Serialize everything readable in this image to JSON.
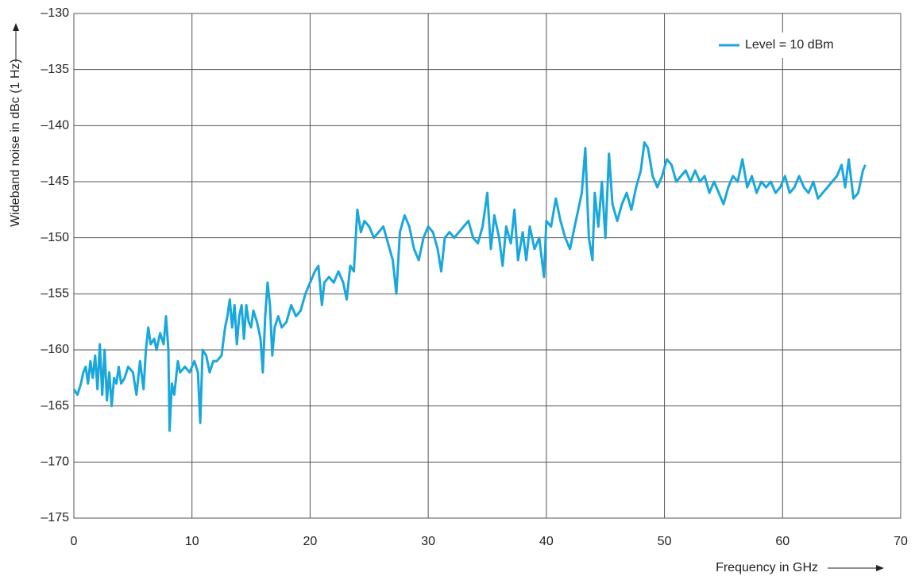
{
  "chart_data": {
    "type": "line",
    "ylabel": "Wideband noise in dBc (1 Hz)",
    "xlabel": "Frequency in GHz",
    "xlim": [
      0,
      70
    ],
    "xticks": [
      0,
      10,
      20,
      30,
      40,
      50,
      60,
      70
    ],
    "ylim": [
      -175,
      -130
    ],
    "yticks": [
      {
        "value": -175,
        "label": "–175"
      },
      {
        "value": -170,
        "label": "–170"
      },
      {
        "value": -165,
        "label": "–165"
      },
      {
        "value": -160,
        "label": "–160"
      },
      {
        "value": -155,
        "label": "–155"
      },
      {
        "value": -150,
        "label": "–150"
      },
      {
        "value": -145,
        "label": "–145"
      },
      {
        "value": -140,
        "label": "–140"
      },
      {
        "value": -135,
        "label": "–135"
      },
      {
        "value": -130,
        "label": "–130"
      }
    ],
    "grid": true,
    "legend": "upper right",
    "series": [
      {
        "name": "Level = 10 dBm",
        "color": "#1aa7dc",
        "x": [
          0,
          0.3,
          0.6,
          0.8,
          1,
          1.2,
          1.4,
          1.6,
          1.8,
          2,
          2.2,
          2.4,
          2.6,
          2.8,
          3,
          3.2,
          3.4,
          3.6,
          3.8,
          4,
          4.3,
          4.6,
          5,
          5.3,
          5.6,
          5.9,
          6.1,
          6.3,
          6.5,
          6.8,
          7,
          7.3,
          7.6,
          7.8,
          8,
          8.1,
          8.3,
          8.5,
          8.8,
          9,
          9.4,
          9.8,
          10.2,
          10.5,
          10.7,
          10.9,
          11.2,
          11.5,
          11.8,
          12.1,
          12.5,
          12.8,
          13,
          13.2,
          13.4,
          13.6,
          13.8,
          14,
          14.2,
          14.4,
          14.6,
          14.8,
          15,
          15.2,
          15.5,
          15.8,
          16,
          16.2,
          16.4,
          16.6,
          16.8,
          17,
          17.3,
          17.6,
          18,
          18.4,
          18.8,
          19.2,
          19.6,
          20,
          20.4,
          20.7,
          21,
          21.2,
          21.6,
          22,
          22.4,
          22.8,
          23.1,
          23.4,
          23.7,
          24,
          24.3,
          24.6,
          25,
          25.4,
          25.8,
          26.2,
          26.6,
          27,
          27.3,
          27.6,
          28,
          28.4,
          28.8,
          29.2,
          29.6,
          30,
          30.4,
          30.8,
          31.1,
          31.4,
          31.8,
          32.2,
          32.6,
          33,
          33.4,
          33.8,
          34.2,
          34.6,
          35,
          35.3,
          35.6,
          36,
          36.3,
          36.6,
          37,
          37.3,
          37.6,
          38,
          38.3,
          38.6,
          39,
          39.4,
          39.8,
          40,
          40.4,
          40.8,
          41.2,
          41.6,
          42,
          42.4,
          42.8,
          43,
          43.3,
          43.6,
          43.9,
          44.1,
          44.4,
          44.7,
          45,
          45.3,
          45.6,
          46,
          46.4,
          46.8,
          47.2,
          47.6,
          48,
          48.3,
          48.6,
          49,
          49.4,
          49.8,
          50.2,
          50.6,
          51,
          51.4,
          51.8,
          52.2,
          52.6,
          53,
          53.4,
          53.8,
          54.2,
          54.6,
          55,
          55.4,
          55.8,
          56.2,
          56.6,
          57,
          57.4,
          57.8,
          58.2,
          58.6,
          59,
          59.4,
          59.8,
          60.2,
          60.6,
          61,
          61.4,
          61.8,
          62.2,
          62.6,
          63,
          63.4,
          63.8,
          64.2,
          64.6,
          65,
          65.3,
          65.6,
          66,
          66.4,
          66.8,
          67
        ],
        "values": [
          -163.5,
          -164,
          -163,
          -162,
          -161.5,
          -163,
          -161,
          -162.5,
          -160.5,
          -163.5,
          -159.5,
          -164,
          -160,
          -164.5,
          -162,
          -165,
          -162.5,
          -163,
          -161.5,
          -163,
          -162.5,
          -161.5,
          -162,
          -164,
          -161,
          -163.5,
          -160,
          -158,
          -159.5,
          -159,
          -160,
          -158.5,
          -159.5,
          -157,
          -160,
          -167.2,
          -163,
          -164,
          -161,
          -162,
          -161.5,
          -162,
          -161,
          -162,
          -166.5,
          -160,
          -160.5,
          -162,
          -161,
          -161,
          -160.5,
          -158,
          -157,
          -155.5,
          -158,
          -156,
          -159.5,
          -157,
          -156,
          -159,
          -156,
          -157.5,
          -158,
          -156.5,
          -157.5,
          -159,
          -162,
          -157,
          -154,
          -156,
          -160.5,
          -158,
          -157,
          -158,
          -157.5,
          -156,
          -157,
          -156.5,
          -155,
          -154,
          -153,
          -152.5,
          -156,
          -154,
          -153.5,
          -154,
          -153,
          -154,
          -155.5,
          -152.5,
          -153,
          -147.5,
          -149.5,
          -148.5,
          -149,
          -150,
          -149.5,
          -149,
          -150.5,
          -152,
          -155,
          -149.5,
          -148,
          -149,
          -151,
          -152,
          -150,
          -149,
          -149.5,
          -151,
          -153,
          -150,
          -149.5,
          -150,
          -149.5,
          -149,
          -148.5,
          -150,
          -150.5,
          -149,
          -146,
          -151,
          -148,
          -150,
          -152.5,
          -149,
          -150.5,
          -147.5,
          -152,
          -149.5,
          -152,
          -149,
          -151,
          -150,
          -153.5,
          -148.5,
          -149,
          -146.5,
          -148.5,
          -150,
          -151,
          -149,
          -147,
          -146,
          -142,
          -150,
          -152,
          -146,
          -149,
          -145,
          -150,
          -142.5,
          -147,
          -148.5,
          -147,
          -146,
          -147.5,
          -145.5,
          -144,
          -141.5,
          -142,
          -144.5,
          -145.5,
          -144.5,
          -143,
          -143.5,
          -145,
          -144.5,
          -144,
          -145,
          -144,
          -145,
          -144.5,
          -146,
          -145,
          -146,
          -147,
          -145.5,
          -144.5,
          -145,
          -143,
          -145.5,
          -144.5,
          -146,
          -145,
          -145.5,
          -145,
          -146,
          -145.5,
          -144.5,
          -146,
          -145.5,
          -144.5,
          -145.5,
          -146,
          -145,
          -146.5,
          -146,
          -145.5,
          -145,
          -144.5,
          -143.5,
          -145.5,
          -143,
          -146.5,
          -146,
          -144,
          -143.5
        ]
      }
    ]
  }
}
